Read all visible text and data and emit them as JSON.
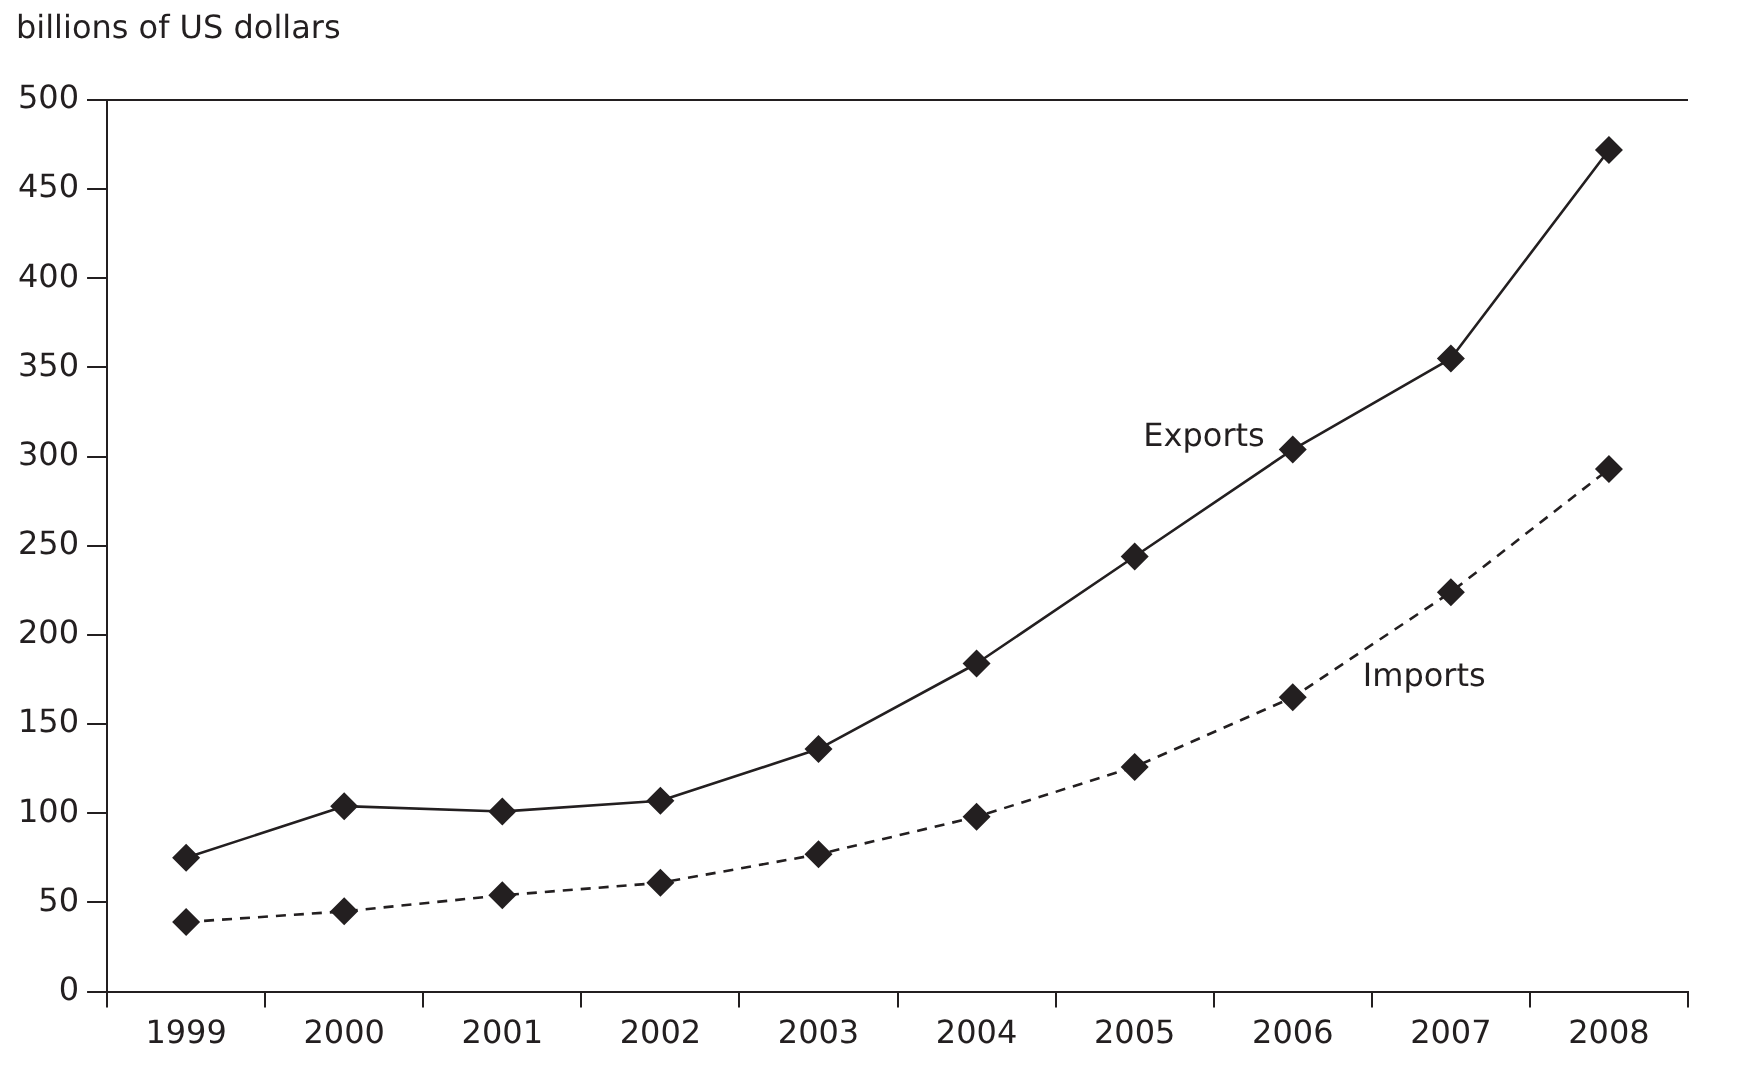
{
  "chart_data": {
    "type": "line",
    "ylabel": "billions of US dollars",
    "categories": [
      "1999",
      "2000",
      "2001",
      "2002",
      "2003",
      "2004",
      "2005",
      "2006",
      "2007",
      "2008"
    ],
    "series": [
      {
        "name": "Exports",
        "color": "#231f20",
        "line_style": "solid",
        "values": [
          75,
          104,
          101,
          107,
          136,
          184,
          244,
          304,
          355,
          472
        ]
      },
      {
        "name": "Imports",
        "color": "#231f20",
        "line_style": "dashed",
        "values": [
          39,
          45,
          54,
          61,
          77,
          98,
          126,
          165,
          224,
          293
        ]
      }
    ],
    "ylim": [
      0,
      500
    ],
    "yticks": [
      0,
      50,
      100,
      150,
      200,
      250,
      300,
      350,
      400,
      450,
      500
    ],
    "marker": "diamond",
    "grid": false,
    "legend": false
  }
}
